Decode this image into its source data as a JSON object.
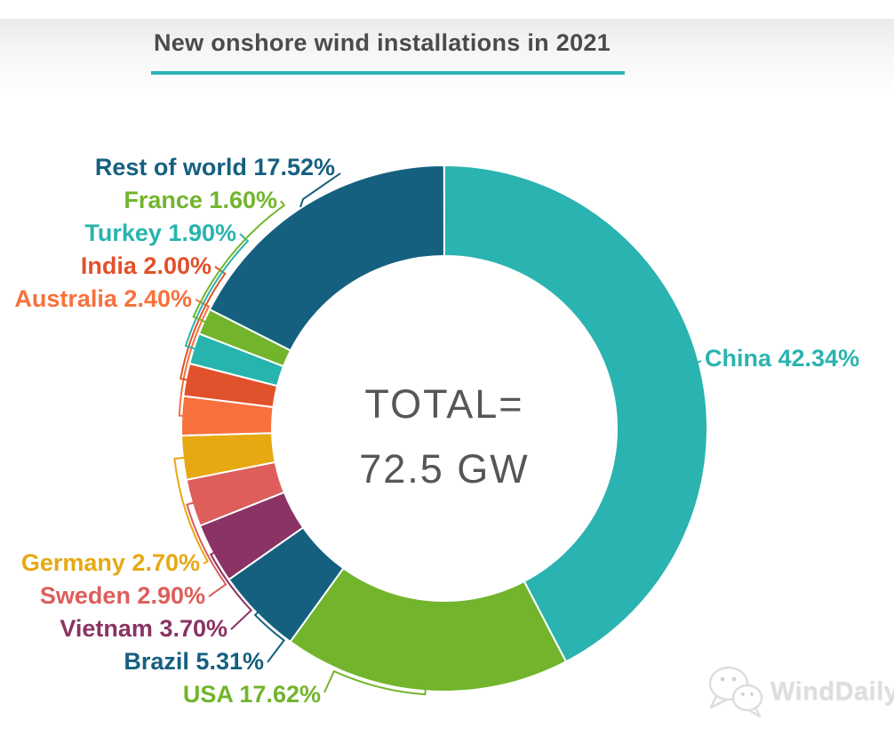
{
  "header": {
    "title": "New onshore wind installations in 2021",
    "title_color": "#4b4b4b",
    "underline_color": "#2fb3b5"
  },
  "chart_data": {
    "type": "pie",
    "variant": "donut",
    "title": "New onshore wind installations in 2021",
    "unit": "% of total new onshore wind capacity",
    "total": "72.5 GW",
    "center_label": {
      "line1": "TOTAL=",
      "line2": "72.5 GW"
    },
    "start_angle_deg": 0,
    "direction": "clockwise",
    "legend_position": "outside-callout-labels",
    "series": [
      {
        "name": "China",
        "value": 42.34,
        "label": "China 42.34%",
        "color": "#2ab3b0"
      },
      {
        "name": "USA",
        "value": 17.62,
        "label": "USA 17.62%",
        "color": "#72b52d"
      },
      {
        "name": "Brazil",
        "value": 5.31,
        "label": "Brazil 5.31%",
        "color": "#15607f"
      },
      {
        "name": "Vietnam",
        "value": 3.7,
        "label": "Vietnam 3.70%",
        "color": "#8a3364"
      },
      {
        "name": "Sweden",
        "value": 2.9,
        "label": "Sweden 2.90%",
        "color": "#dd5e5b"
      },
      {
        "name": "Germany",
        "value": 2.7,
        "label": "Germany 2.70%",
        "color": "#e6a911"
      },
      {
        "name": "Australia",
        "value": 2.4,
        "label": "Australia 2.40%",
        "color": "#f8713c"
      },
      {
        "name": "India",
        "value": 2.0,
        "label": "India 2.00%",
        "color": "#e1512b"
      },
      {
        "name": "Turkey",
        "value": 1.9,
        "label": "Turkey 1.90%",
        "color": "#28b4ae"
      },
      {
        "name": "France",
        "value": 1.6,
        "label": "France 1.60%",
        "color": "#72b52d"
      },
      {
        "name": "Rest of world",
        "value": 17.52,
        "label": "Rest of world 17.52%",
        "color": "#15607f"
      }
    ]
  },
  "watermark": {
    "text": "WindDaily",
    "icon": "wechat-icon"
  }
}
